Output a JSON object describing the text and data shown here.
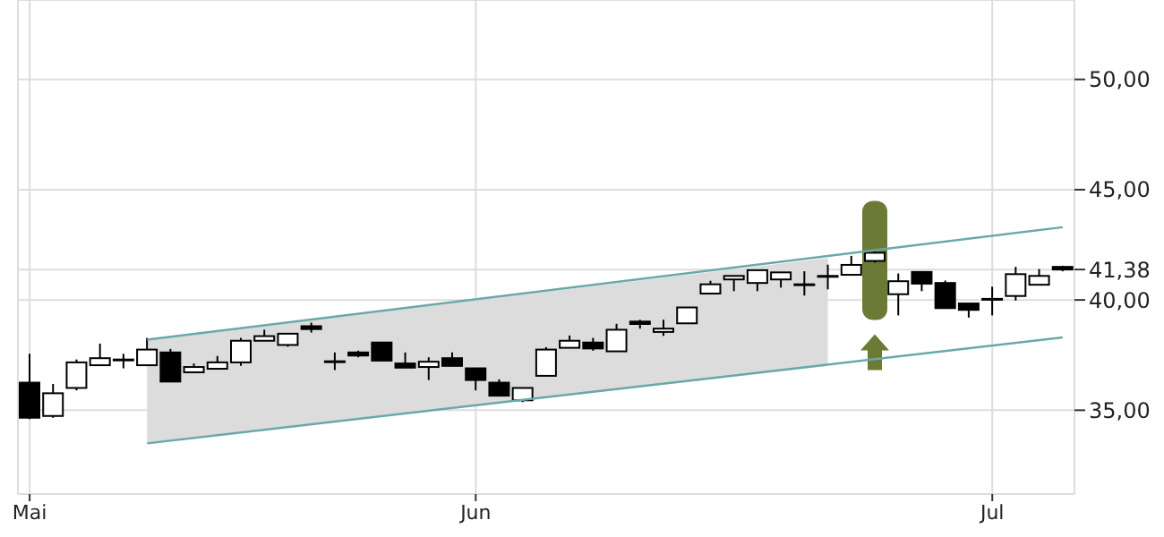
{
  "chart_data": {
    "type": "candlestick",
    "color": "#000000",
    "grid": true,
    "marker": "none",
    "categories": [
      "Mai",
      null,
      null,
      null,
      null,
      null,
      null,
      null,
      null,
      null,
      null,
      null,
      null,
      null,
      null,
      null,
      null,
      null,
      null,
      "Jun",
      null,
      null,
      null,
      null,
      null,
      null,
      null,
      null,
      null,
      null,
      null,
      null,
      null,
      null,
      null,
      null,
      null,
      null,
      null,
      null,
      null,
      "Jul",
      null,
      null,
      null
    ],
    "ohlc": [
      [
        36.25,
        37.56,
        34.6,
        34.66
      ],
      [
        34.74,
        36.19,
        34.66,
        35.77
      ],
      [
        36.01,
        37.3,
        35.9,
        37.17
      ],
      [
        37.04,
        38.02,
        37.04,
        37.36
      ],
      [
        37.3,
        37.56,
        36.9,
        37.3
      ],
      [
        37.04,
        38.28,
        37.04,
        37.75
      ],
      [
        37.62,
        37.78,
        36.3,
        36.3
      ],
      [
        36.72,
        37.12,
        36.72,
        36.96
      ],
      [
        36.88,
        37.46,
        36.88,
        37.17
      ],
      [
        37.17,
        38.28,
        37.01,
        38.15
      ],
      [
        38.15,
        38.65,
        38.15,
        38.36
      ],
      [
        37.96,
        38.47,
        37.88,
        38.47
      ],
      [
        38.81,
        38.97,
        38.52,
        38.68
      ],
      [
        37.22,
        37.62,
        36.82,
        37.22
      ],
      [
        37.62,
        37.7,
        37.4,
        37.48
      ],
      [
        38.07,
        38.07,
        37.25,
        37.25
      ],
      [
        37.12,
        37.62,
        36.93,
        36.93
      ],
      [
        36.96,
        37.4,
        36.37,
        37.2
      ],
      [
        37.36,
        37.62,
        37.01,
        37.01
      ],
      [
        36.9,
        36.9,
        35.9,
        36.37
      ],
      [
        36.25,
        36.4,
        35.66,
        35.66
      ],
      [
        35.45,
        36.01,
        35.37,
        36.01
      ],
      [
        36.56,
        37.86,
        36.56,
        37.75
      ],
      [
        37.83,
        38.39,
        37.83,
        38.15
      ],
      [
        38.07,
        38.28,
        37.7,
        37.8
      ],
      [
        37.67,
        38.92,
        37.67,
        38.65
      ],
      [
        39.02,
        39.1,
        38.7,
        38.91
      ],
      [
        38.55,
        39.1,
        38.37,
        38.7
      ],
      [
        38.94,
        39.66,
        38.94,
        39.66
      ],
      [
        40.29,
        40.87,
        40.29,
        40.71
      ],
      [
        40.93,
        41.09,
        40.4,
        41.09
      ],
      [
        40.77,
        41.35,
        40.4,
        41.35
      ],
      [
        40.93,
        41.25,
        40.56,
        41.25
      ],
      [
        40.71,
        41.3,
        40.2,
        40.71
      ],
      [
        41.09,
        41.6,
        40.48,
        41.09
      ],
      [
        41.14,
        42.0,
        41.14,
        41.59
      ],
      [
        41.77,
        42.22,
        41.69,
        42.14
      ],
      [
        40.26,
        41.2,
        39.3,
        40.85
      ],
      [
        41.27,
        41.27,
        40.4,
        40.74
      ],
      [
        40.77,
        40.88,
        39.63,
        39.63
      ],
      [
        39.84,
        39.84,
        39.2,
        39.55
      ],
      [
        40.05,
        40.6,
        39.3,
        40.05
      ],
      [
        40.18,
        41.5,
        39.97,
        41.17
      ],
      [
        40.69,
        41.4,
        40.69,
        41.09
      ],
      [
        41.5,
        41.55,
        41.3,
        41.38
      ]
    ],
    "series": [
      {
        "type": "line",
        "color": "#6aa8aa",
        "upper": [
          null,
          null,
          null,
          null,
          null,
          38.2,
          null,
          null,
          null,
          null,
          null,
          null,
          null,
          null,
          null,
          null,
          null,
          null,
          null,
          null,
          null,
          null,
          null,
          null,
          null,
          null,
          null,
          null,
          null,
          null,
          null,
          null,
          null,
          null,
          41.9,
          null,
          null,
          null,
          null,
          null,
          null,
          null,
          null,
          null,
          null
        ],
        "lower": [
          null,
          null,
          null,
          null,
          null,
          33.5,
          null,
          null,
          null,
          null,
          null,
          null,
          null,
          null,
          null,
          null,
          null,
          null,
          null,
          null,
          null,
          null,
          null,
          null,
          null,
          null,
          null,
          null,
          null,
          null,
          null,
          null,
          null,
          null,
          37.0,
          null,
          null,
          null,
          null,
          null,
          null,
          null,
          null,
          null,
          null
        ],
        "values": [
          null,
          null,
          null,
          null,
          null,
          38.2,
          null,
          null,
          null,
          null,
          null,
          null,
          null,
          null,
          null,
          null,
          null,
          null,
          null,
          null,
          null,
          null,
          null,
          null,
          null,
          null,
          null,
          null,
          null,
          null,
          null,
          null,
          null,
          null,
          null,
          null,
          null,
          null,
          null,
          null,
          null,
          null,
          null,
          null,
          43.3
        ]
      },
      {
        "type": "line",
        "color": "#6aa8aa",
        "values": [
          null,
          null,
          null,
          null,
          null,
          33.5,
          null,
          null,
          null,
          null,
          null,
          null,
          null,
          null,
          null,
          null,
          null,
          null,
          null,
          null,
          null,
          null,
          null,
          null,
          null,
          null,
          null,
          null,
          null,
          null,
          null,
          null,
          null,
          null,
          null,
          null,
          null,
          null,
          null,
          null,
          null,
          null,
          null,
          null,
          38.3
        ]
      }
    ],
    "ylim": [
      31.2,
      53.6
    ],
    "yticks": [
      {
        "value": 35,
        "label": "35,00"
      },
      {
        "value": 40,
        "label": "40,00"
      },
      {
        "value": 41.38,
        "label": "41,38"
      },
      {
        "value": 45,
        "label": "45,00"
      },
      {
        "value": 50,
        "label": "50,00"
      }
    ]
  }
}
